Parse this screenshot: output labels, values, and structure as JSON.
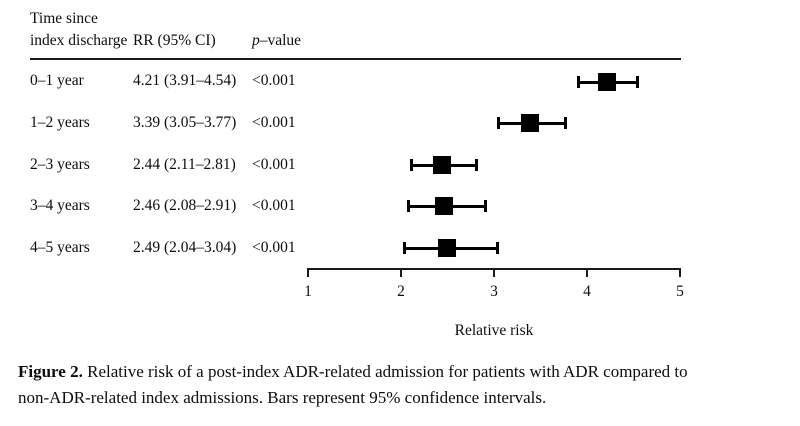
{
  "figure": {
    "table": {
      "header": {
        "time_line1": "Time since",
        "time_line2": "index discharge",
        "rr": "RR (95% CI)",
        "p_prefix": "p",
        "p_suffix": "–value"
      },
      "rows": [
        {
          "time": "0–1 year",
          "rr": "4.21 (3.91–4.54)",
          "p": "<0.001"
        },
        {
          "time": "1–2 years",
          "rr": "3.39 (3.05–3.77)",
          "p": "<0.001"
        },
        {
          "time": "2–3 years",
          "rr": "2.44 (2.11–2.81)",
          "p": "<0.001"
        },
        {
          "time": "3–4 years",
          "rr": "2.46 (2.08–2.91)",
          "p": "<0.001"
        },
        {
          "time": "4–5 years",
          "rr": "2.49 (2.04–3.04)",
          "p": "<0.001"
        }
      ]
    },
    "axis_title": "Relative risk",
    "caption": {
      "label": "Figure 2.",
      "line1": "Relative risk of a post-index ADR-related admission for patients with ADR compared to",
      "line2": "non-ADR-related index admissions. Bars represent 95% confidence intervals."
    }
  },
  "chart_data": {
    "type": "scatter",
    "subtype": "forest-plot",
    "title": "",
    "categories": [
      "0–1 year",
      "1–2 years",
      "2–3 years",
      "3–4 years",
      "4–5 years"
    ],
    "series": [
      {
        "name": "RR (95% CI)",
        "values": [
          4.21,
          3.39,
          2.44,
          2.46,
          2.49
        ],
        "ci_low": [
          3.91,
          3.05,
          2.11,
          2.08,
          2.04
        ],
        "ci_high": [
          4.54,
          3.77,
          2.81,
          2.91,
          3.04
        ]
      }
    ],
    "p_values": [
      "<0.001",
      "<0.001",
      "<0.001",
      "<0.001",
      "<0.001"
    ],
    "xlabel": "Relative risk",
    "xlim": [
      1,
      5
    ],
    "xticks": [
      1,
      2,
      3,
      4,
      5
    ],
    "marker": "filled-square",
    "marker_color": "#000000",
    "grid": false,
    "legend": false
  }
}
